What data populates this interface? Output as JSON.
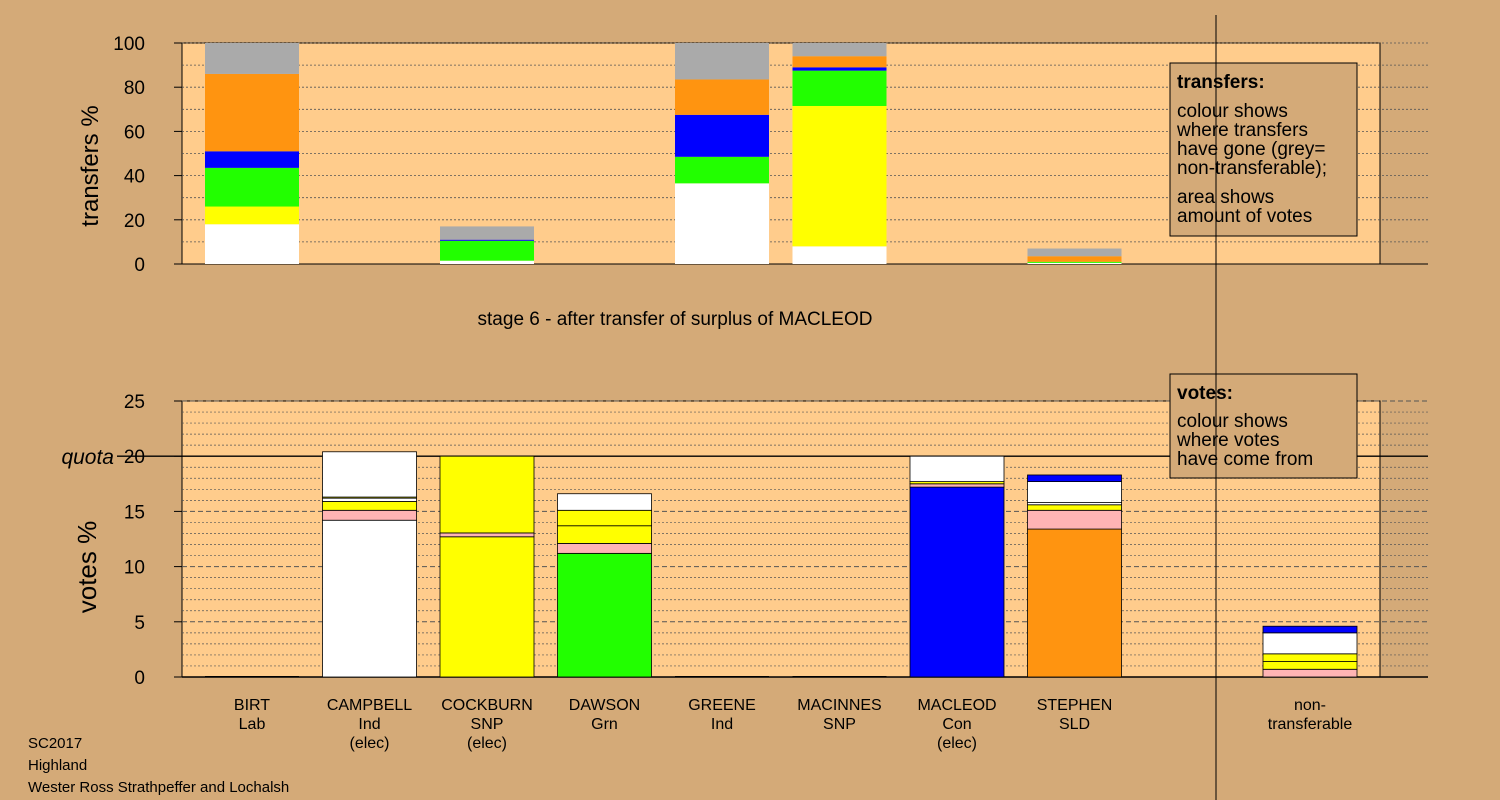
{
  "footer": {
    "line1": "SC2017",
    "line2": "Highland",
    "line3": "Wester Ross Strathpeffer and Lochalsh"
  },
  "colors": {
    "panel_bg": "#ffcc8c",
    "page_bg": "#d4aa78",
    "white": "#ffffff",
    "yellow": "#ffff00",
    "green": "#22ff00",
    "blue": "#0000ff",
    "orange": "#ff9410",
    "pink": "#ffb4b4",
    "grey": "#aaaaaa"
  },
  "chart_data": [
    {
      "type": "bar",
      "stacked": true,
      "ylabel": "transfers %",
      "ylim": [
        0,
        100
      ],
      "yticks": [
        0,
        20,
        40,
        60,
        80,
        100
      ],
      "caption": "stage 6 - after transfer of surplus of MACLEOD",
      "categories": [
        "BIRT",
        "CAMPBELL",
        "COCKBURN",
        "DAWSON",
        "GREENE",
        "MACINNES",
        "MACLEOD",
        "STEPHEN",
        "non-transferable"
      ],
      "bars": [
        {
          "candidate": "BIRT",
          "segments": [
            [
              "white",
              18
            ],
            [
              "yellow",
              8
            ],
            [
              "green",
              17.5
            ],
            [
              "blue",
              7.5
            ],
            [
              "orange",
              35
            ],
            [
              "grey",
              14
            ]
          ]
        },
        {
          "candidate": "COCKBURN",
          "segments": [
            [
              "white",
              1.5
            ],
            [
              "green",
              9
            ],
            [
              "blue",
              0.5
            ],
            [
              "grey",
              6
            ]
          ]
        },
        {
          "candidate": "GREENE",
          "segments": [
            [
              "white",
              36.5
            ],
            [
              "green",
              12
            ],
            [
              "blue",
              19
            ],
            [
              "orange",
              16
            ],
            [
              "grey",
              16.5
            ]
          ]
        },
        {
          "candidate": "MACINNES",
          "segments": [
            [
              "white",
              8
            ],
            [
              "yellow",
              63.5
            ],
            [
              "green",
              16
            ],
            [
              "blue",
              1.5
            ],
            [
              "orange",
              5
            ],
            [
              "grey",
              6
            ]
          ]
        },
        {
          "candidate": "STEPHEN",
          "segments": [
            [
              "white",
              0.5
            ],
            [
              "green",
              0.5
            ],
            [
              "orange",
              2.5
            ],
            [
              "grey",
              3.5
            ]
          ]
        }
      ],
      "legend": {
        "title": "transfers:",
        "line1": "colour shows",
        "line2": "where transfers",
        "line3": "have gone (grey=",
        "line4": "non-transferable);",
        "line5": "area shows",
        "line6": "amount of votes",
        "position": "top-right"
      }
    },
    {
      "type": "bar",
      "stacked": true,
      "ylabel": "votes %",
      "ylim": [
        0,
        25
      ],
      "yticks": [
        0,
        5,
        10,
        15,
        20,
        25
      ],
      "quota": {
        "label": "quota",
        "value": 20
      },
      "candidates": [
        {
          "name": "BIRT",
          "party": "Lab",
          "note": "",
          "segments": []
        },
        {
          "name": "CAMPBELL",
          "party": "Ind",
          "note": "(elec)",
          "segments": [
            [
              "white",
              14.2
            ],
            [
              "pink",
              0.9
            ],
            [
              "yellow",
              0.8
            ],
            [
              "white",
              0.3
            ],
            [
              "yellow",
              0.1
            ],
            [
              "white",
              4.1
            ]
          ]
        },
        {
          "name": "COCKBURN",
          "party": "SNP",
          "note": "(elec)",
          "segments": [
            [
              "yellow",
              12.7
            ],
            [
              "pink",
              0.35
            ],
            [
              "yellow",
              6.95
            ]
          ]
        },
        {
          "name": "DAWSON",
          "party": "Grn",
          "note": "",
          "segments": [
            [
              "green",
              11.2
            ],
            [
              "pink",
              0.9
            ],
            [
              "yellow",
              1.6
            ],
            [
              "yellow",
              1.4
            ],
            [
              "white",
              1.5
            ]
          ]
        },
        {
          "name": "GREENE",
          "party": "Ind",
          "note": "",
          "segments": []
        },
        {
          "name": "MACINNES",
          "party": "SNP",
          "note": "",
          "segments": []
        },
        {
          "name": "MACLEOD",
          "party": "Con",
          "note": "(elec)",
          "segments": [
            [
              "blue",
              17.2
            ],
            [
              "pink",
              0.3
            ],
            [
              "yellow",
              0.2
            ],
            [
              "white",
              2.3
            ]
          ]
        },
        {
          "name": "STEPHEN",
          "party": "SLD",
          "note": "",
          "segments": [
            [
              "orange",
              13.4
            ],
            [
              "pink",
              1.7
            ],
            [
              "yellow",
              0.5
            ],
            [
              "white",
              0.2
            ],
            [
              "white",
              1.9
            ],
            [
              "blue",
              0.6
            ]
          ]
        },
        {
          "name": "non-",
          "party": "transferable",
          "note": "",
          "segments": [
            [
              "pink",
              0.7
            ],
            [
              "yellow",
              0.7
            ],
            [
              "yellow",
              0.7
            ],
            [
              "white",
              1.9
            ],
            [
              "blue",
              0.6
            ]
          ]
        }
      ],
      "legend": {
        "title": "votes:",
        "line1": "colour shows",
        "line2": "where votes",
        "line3": "have come from",
        "position": "top-right"
      }
    }
  ]
}
